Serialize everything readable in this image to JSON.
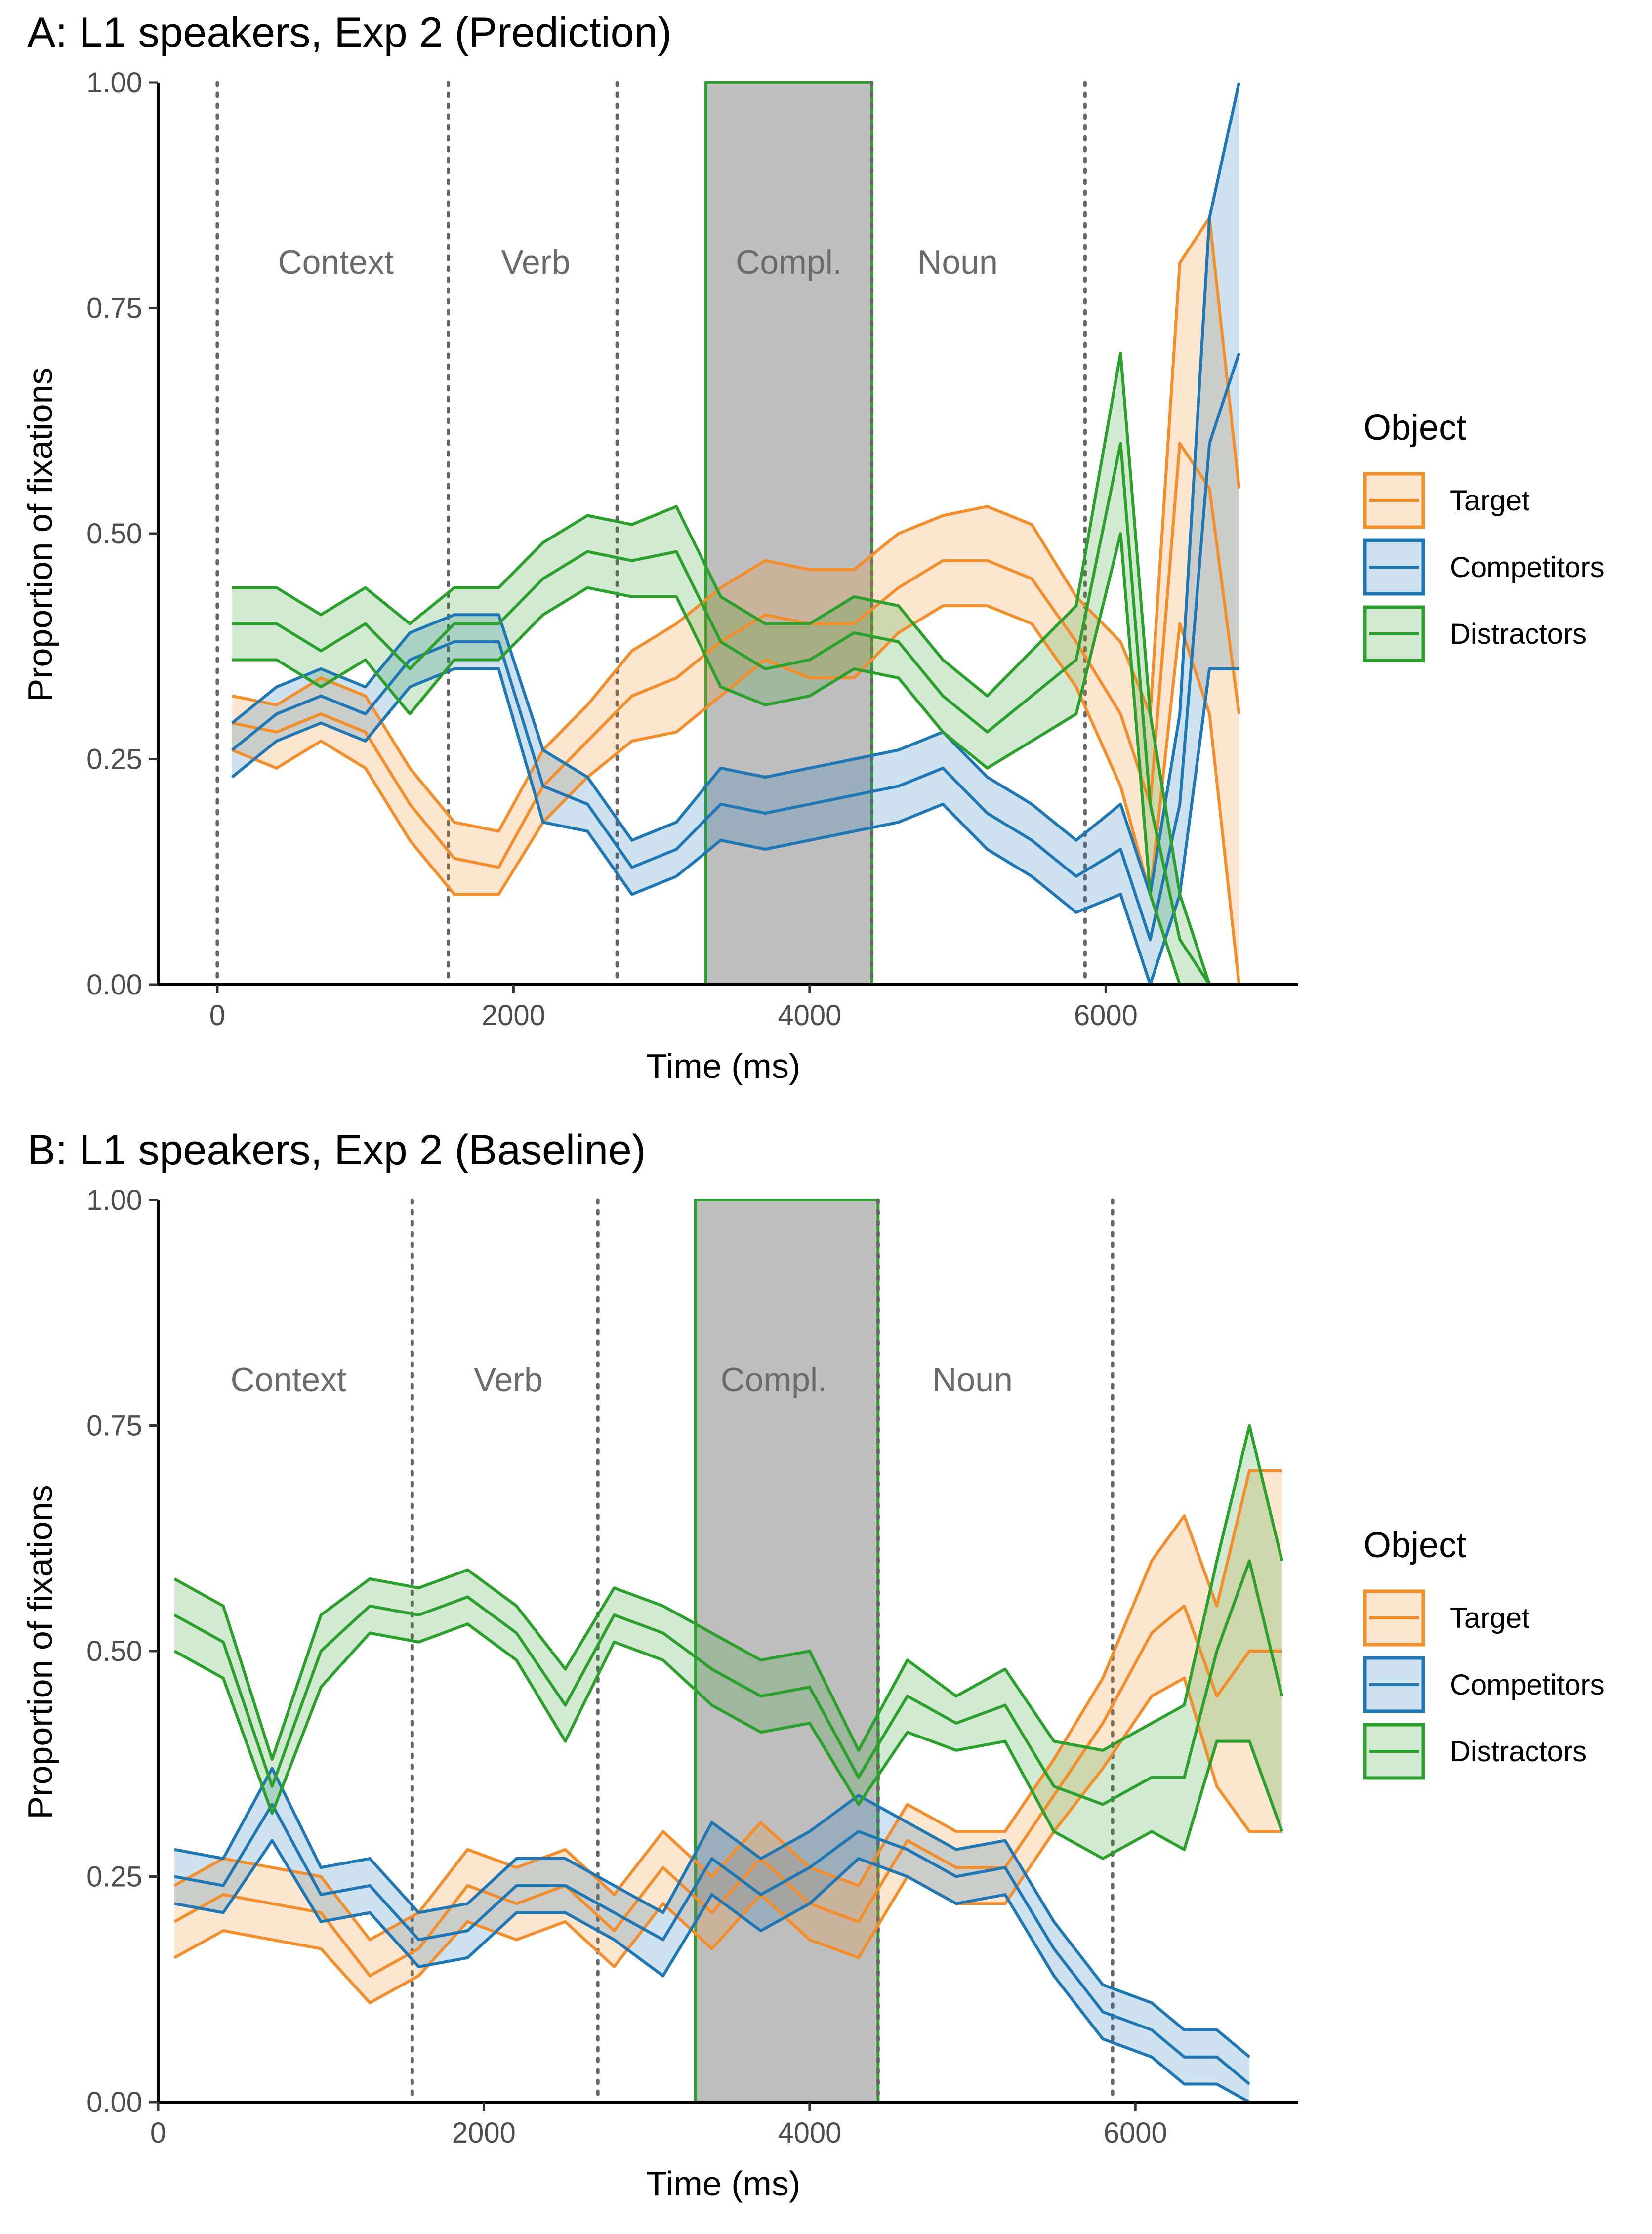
{
  "chart_data": [
    {
      "type": "line",
      "title": "A: L1 speakers, Exp 2 (Prediction)",
      "xlabel": "Time (ms)",
      "ylabel": "Proportion of fixations",
      "xlim": [
        -400,
        7300
      ],
      "ylim": [
        0,
        1
      ],
      "xticks": [
        0,
        2000,
        4000,
        6000
      ],
      "xtick_labels": [
        "0",
        "2000",
        "4000",
        "6000"
      ],
      "yticks": [
        0,
        0.25,
        0.5,
        0.75,
        1
      ],
      "ytick_labels": [
        "0.00",
        "0.25",
        "0.50",
        "0.75",
        "1.00"
      ],
      "vlines": [
        0,
        1560,
        2700,
        4420,
        5860
      ],
      "shaded_region": {
        "x0": 3300,
        "x1": 4420,
        "label": "Compl."
      },
      "region_labels": [
        {
          "text": "Context",
          "x": 800
        },
        {
          "text": "Verb",
          "x": 2150
        },
        {
          "text": "Compl.",
          "x": 3860
        },
        {
          "text": "Noun",
          "x": 5000
        }
      ],
      "region_label_y": 0.8,
      "legend": {
        "title": "Object",
        "entries": [
          "Target",
          "Competitors",
          "Distractors"
        ],
        "position": "right"
      },
      "series": [
        {
          "name": "Target",
          "color": "#F28E2B",
          "x": [
            100,
            400,
            700,
            1000,
            1300,
            1600,
            1900,
            2200,
            2500,
            2800,
            3100,
            3400,
            3700,
            4000,
            4300,
            4600,
            4900,
            5200,
            5500,
            5800,
            6100,
            6300,
            6500,
            6700,
            6900
          ],
          "mean": [
            0.29,
            0.28,
            0.3,
            0.28,
            0.2,
            0.14,
            0.13,
            0.22,
            0.27,
            0.32,
            0.34,
            0.38,
            0.41,
            0.4,
            0.4,
            0.44,
            0.47,
            0.47,
            0.45,
            0.38,
            0.3,
            0.2,
            0.6,
            0.55,
            0.3
          ],
          "lower": [
            0.26,
            0.24,
            0.27,
            0.24,
            0.16,
            0.1,
            0.1,
            0.18,
            0.23,
            0.27,
            0.28,
            0.32,
            0.36,
            0.34,
            0.34,
            0.39,
            0.42,
            0.42,
            0.4,
            0.33,
            0.22,
            0.1,
            0.4,
            0.3,
            0.0
          ],
          "upper": [
            0.32,
            0.31,
            0.34,
            0.32,
            0.24,
            0.18,
            0.17,
            0.26,
            0.31,
            0.37,
            0.4,
            0.44,
            0.47,
            0.46,
            0.46,
            0.5,
            0.52,
            0.53,
            0.51,
            0.43,
            0.38,
            0.3,
            0.8,
            0.85,
            0.55
          ]
        },
        {
          "name": "Competitors",
          "color": "#1F77B4",
          "x": [
            100,
            400,
            700,
            1000,
            1300,
            1600,
            1900,
            2200,
            2500,
            2800,
            3100,
            3400,
            3700,
            4000,
            4300,
            4600,
            4900,
            5200,
            5500,
            5800,
            6100,
            6300,
            6500,
            6700,
            6900
          ],
          "mean": [
            0.26,
            0.3,
            0.32,
            0.3,
            0.36,
            0.38,
            0.38,
            0.22,
            0.2,
            0.13,
            0.15,
            0.2,
            0.19,
            0.2,
            0.21,
            0.22,
            0.24,
            0.19,
            0.16,
            0.12,
            0.15,
            0.05,
            0.2,
            0.6,
            0.7
          ],
          "lower": [
            0.23,
            0.27,
            0.29,
            0.27,
            0.33,
            0.35,
            0.35,
            0.18,
            0.17,
            0.1,
            0.12,
            0.16,
            0.15,
            0.16,
            0.17,
            0.18,
            0.2,
            0.15,
            0.12,
            0.08,
            0.1,
            0.0,
            0.1,
            0.35,
            0.35
          ],
          "upper": [
            0.29,
            0.33,
            0.35,
            0.33,
            0.39,
            0.41,
            0.41,
            0.26,
            0.23,
            0.16,
            0.18,
            0.24,
            0.23,
            0.24,
            0.25,
            0.26,
            0.28,
            0.23,
            0.2,
            0.16,
            0.2,
            0.1,
            0.3,
            0.85,
            1.0
          ]
        },
        {
          "name": "Distractors",
          "color": "#2CA02C",
          "x": [
            100,
            400,
            700,
            1000,
            1300,
            1600,
            1900,
            2200,
            2500,
            2800,
            3100,
            3400,
            3700,
            4000,
            4300,
            4600,
            4900,
            5200,
            5500,
            5800,
            6100,
            6300,
            6500,
            6700,
            6900
          ],
          "mean": [
            0.4,
            0.4,
            0.37,
            0.4,
            0.35,
            0.4,
            0.4,
            0.45,
            0.48,
            0.47,
            0.48,
            0.38,
            0.35,
            0.36,
            0.39,
            0.38,
            0.32,
            0.28,
            0.32,
            0.36,
            0.6,
            0.2,
            0.05,
            0.0,
            0.0
          ],
          "lower": [
            0.36,
            0.36,
            0.33,
            0.36,
            0.3,
            0.36,
            0.36,
            0.41,
            0.44,
            0.43,
            0.43,
            0.33,
            0.31,
            0.32,
            0.35,
            0.34,
            0.28,
            0.24,
            0.27,
            0.3,
            0.5,
            0.1,
            0.0,
            0.0,
            0.0
          ],
          "upper": [
            0.44,
            0.44,
            0.41,
            0.44,
            0.4,
            0.44,
            0.44,
            0.49,
            0.52,
            0.51,
            0.53,
            0.43,
            0.4,
            0.4,
            0.43,
            0.42,
            0.36,
            0.32,
            0.37,
            0.42,
            0.7,
            0.3,
            0.1,
            0.0,
            0.0
          ]
        }
      ]
    },
    {
      "type": "line",
      "title": "B: L1 speakers, Exp 2 (Baseline)",
      "xlabel": "Time (ms)",
      "ylabel": "Proportion of fixations",
      "xlim": [
        0,
        7000
      ],
      "ylim": [
        0,
        1
      ],
      "xticks": [
        0,
        2000,
        4000,
        6000
      ],
      "xtick_labels": [
        "0",
        "2000",
        "4000",
        "6000"
      ],
      "yticks": [
        0,
        0.25,
        0.5,
        0.75,
        1
      ],
      "ytick_labels": [
        "0.00",
        "0.25",
        "0.50",
        "0.75",
        "1.00"
      ],
      "vlines": [
        1560,
        2700,
        4420,
        5860
      ],
      "shaded_region": {
        "x0": 3300,
        "x1": 4420,
        "label": "Compl."
      },
      "region_labels": [
        {
          "text": "Context",
          "x": 800
        },
        {
          "text": "Verb",
          "x": 2150
        },
        {
          "text": "Compl.",
          "x": 3780
        },
        {
          "text": "Noun",
          "x": 5000
        }
      ],
      "region_label_y": 0.8,
      "legend": {
        "title": "Object",
        "entries": [
          "Target",
          "Competitors",
          "Distractors"
        ],
        "position": "right"
      },
      "series": [
        {
          "name": "Target",
          "color": "#F28E2B",
          "x": [
            100,
            400,
            700,
            1000,
            1300,
            1600,
            1900,
            2200,
            2500,
            2800,
            3100,
            3400,
            3700,
            4000,
            4300,
            4600,
            4900,
            5200,
            5500,
            5800,
            6100,
            6300,
            6500,
            6700,
            6900
          ],
          "mean": [
            0.2,
            0.23,
            0.22,
            0.21,
            0.14,
            0.17,
            0.24,
            0.22,
            0.24,
            0.19,
            0.26,
            0.21,
            0.27,
            0.22,
            0.2,
            0.29,
            0.26,
            0.26,
            0.34,
            0.42,
            0.52,
            0.55,
            0.45,
            0.5,
            0.5
          ],
          "lower": [
            0.16,
            0.19,
            0.18,
            0.17,
            0.11,
            0.14,
            0.2,
            0.18,
            0.2,
            0.15,
            0.22,
            0.17,
            0.23,
            0.18,
            0.16,
            0.25,
            0.22,
            0.22,
            0.3,
            0.37,
            0.45,
            0.47,
            0.35,
            0.3,
            0.3
          ],
          "upper": [
            0.24,
            0.27,
            0.26,
            0.25,
            0.18,
            0.21,
            0.28,
            0.26,
            0.28,
            0.23,
            0.3,
            0.25,
            0.31,
            0.26,
            0.24,
            0.33,
            0.3,
            0.3,
            0.38,
            0.47,
            0.6,
            0.65,
            0.55,
            0.7,
            0.7
          ]
        },
        {
          "name": "Competitors",
          "color": "#1F77B4",
          "x": [
            100,
            400,
            700,
            1000,
            1300,
            1600,
            1900,
            2200,
            2500,
            2800,
            3100,
            3400,
            3700,
            4000,
            4300,
            4600,
            4900,
            5200,
            5500,
            5800,
            6100,
            6300,
            6500,
            6700
          ],
          "mean": [
            0.25,
            0.24,
            0.33,
            0.23,
            0.24,
            0.18,
            0.19,
            0.24,
            0.24,
            0.21,
            0.18,
            0.27,
            0.23,
            0.26,
            0.3,
            0.28,
            0.25,
            0.26,
            0.17,
            0.1,
            0.08,
            0.05,
            0.05,
            0.02
          ],
          "lower": [
            0.22,
            0.21,
            0.29,
            0.2,
            0.21,
            0.15,
            0.16,
            0.21,
            0.21,
            0.18,
            0.14,
            0.23,
            0.19,
            0.22,
            0.27,
            0.25,
            0.22,
            0.23,
            0.14,
            0.07,
            0.05,
            0.02,
            0.02,
            0.0
          ],
          "upper": [
            0.28,
            0.27,
            0.37,
            0.26,
            0.27,
            0.21,
            0.22,
            0.27,
            0.27,
            0.24,
            0.21,
            0.31,
            0.27,
            0.3,
            0.34,
            0.31,
            0.28,
            0.29,
            0.2,
            0.13,
            0.11,
            0.08,
            0.08,
            0.05
          ]
        },
        {
          "name": "Distractors",
          "color": "#2CA02C",
          "x": [
            100,
            400,
            700,
            1000,
            1300,
            1600,
            1900,
            2200,
            2500,
            2800,
            3100,
            3400,
            3700,
            4000,
            4300,
            4600,
            4900,
            5200,
            5500,
            5800,
            6100,
            6300,
            6500,
            6700,
            6900
          ],
          "mean": [
            0.54,
            0.51,
            0.35,
            0.5,
            0.55,
            0.54,
            0.56,
            0.52,
            0.44,
            0.54,
            0.52,
            0.48,
            0.45,
            0.46,
            0.36,
            0.45,
            0.42,
            0.44,
            0.35,
            0.33,
            0.36,
            0.36,
            0.5,
            0.6,
            0.45
          ],
          "lower": [
            0.5,
            0.47,
            0.32,
            0.46,
            0.52,
            0.51,
            0.53,
            0.49,
            0.4,
            0.51,
            0.49,
            0.44,
            0.41,
            0.42,
            0.33,
            0.41,
            0.39,
            0.4,
            0.3,
            0.27,
            0.3,
            0.28,
            0.4,
            0.4,
            0.3
          ],
          "upper": [
            0.58,
            0.55,
            0.38,
            0.54,
            0.58,
            0.57,
            0.59,
            0.55,
            0.48,
            0.57,
            0.55,
            0.52,
            0.49,
            0.5,
            0.39,
            0.49,
            0.45,
            0.48,
            0.4,
            0.39,
            0.42,
            0.44,
            0.6,
            0.75,
            0.6
          ]
        }
      ]
    }
  ]
}
